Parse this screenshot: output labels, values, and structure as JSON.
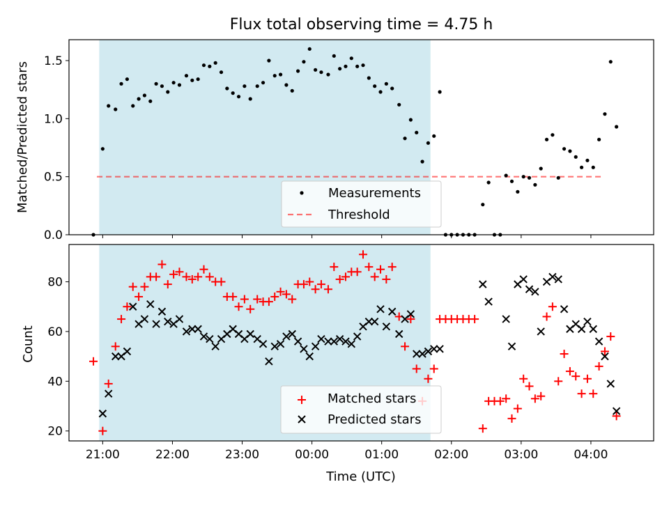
{
  "title": "Flux total observing time = 4.75 h",
  "colors": {
    "shade": "#add8e6",
    "measurement": "#000000",
    "threshold": "#ff0000",
    "matched": "#ff0000",
    "predicted": "#000000"
  },
  "chart_data": [
    {
      "type": "scatter",
      "ylabel": "Matched/Predicted stars",
      "xlim": [
        "20:31",
        "04:54"
      ],
      "ylim": [
        0,
        1.68
      ],
      "yticks": [
        "0.0",
        "0.5",
        "1.0",
        "1.5"
      ],
      "grid": false,
      "legend_position": "lower-center",
      "shaded_span": [
        "20:57",
        "01:42"
      ],
      "threshold": {
        "name": "Threshold",
        "value": 0.5,
        "style": "dashed",
        "x_range": [
          "20:55",
          "04:10"
        ]
      },
      "series": [
        {
          "name": "Measurements",
          "marker": "dot",
          "points": [
            [
              "20:52",
              0.0
            ],
            [
              "21:00",
              0.74
            ],
            [
              "21:05",
              1.11
            ],
            [
              "21:11",
              1.08
            ],
            [
              "21:16",
              1.3
            ],
            [
              "21:21",
              1.34
            ],
            [
              "21:26",
              1.11
            ],
            [
              "21:31",
              1.17
            ],
            [
              "21:36",
              1.2
            ],
            [
              "21:41",
              1.15
            ],
            [
              "21:46",
              1.3
            ],
            [
              "21:51",
              1.28
            ],
            [
              "21:56",
              1.23
            ],
            [
              "22:01",
              1.31
            ],
            [
              "22:06",
              1.29
            ],
            [
              "22:12",
              1.37
            ],
            [
              "22:17",
              1.33
            ],
            [
              "22:22",
              1.34
            ],
            [
              "22:27",
              1.46
            ],
            [
              "22:32",
              1.45
            ],
            [
              "22:37",
              1.48
            ],
            [
              "22:42",
              1.4
            ],
            [
              "22:47",
              1.26
            ],
            [
              "22:52",
              1.22
            ],
            [
              "22:57",
              1.19
            ],
            [
              "23:02",
              1.28
            ],
            [
              "23:07",
              1.17
            ],
            [
              "23:13",
              1.28
            ],
            [
              "23:18",
              1.31
            ],
            [
              "23:23",
              1.5
            ],
            [
              "23:28",
              1.37
            ],
            [
              "23:33",
              1.38
            ],
            [
              "23:38",
              1.29
            ],
            [
              "23:43",
              1.24
            ],
            [
              "23:48",
              1.41
            ],
            [
              "23:53",
              1.49
            ],
            [
              "23:58",
              1.6
            ],
            [
              "00:03",
              1.42
            ],
            [
              "00:08",
              1.4
            ],
            [
              "00:14",
              1.38
            ],
            [
              "00:19",
              1.54
            ],
            [
              "00:24",
              1.43
            ],
            [
              "00:29",
              1.45
            ],
            [
              "00:34",
              1.52
            ],
            [
              "00:39",
              1.45
            ],
            [
              "00:44",
              1.46
            ],
            [
              "00:49",
              1.35
            ],
            [
              "00:54",
              1.28
            ],
            [
              "00:59",
              1.23
            ],
            [
              "01:04",
              1.3
            ],
            [
              "01:09",
              1.26
            ],
            [
              "01:15",
              1.12
            ],
            [
              "01:20",
              0.83
            ],
            [
              "01:25",
              0.99
            ],
            [
              "01:30",
              0.88
            ],
            [
              "01:35",
              0.63
            ],
            [
              "01:40",
              0.79
            ],
            [
              "01:45",
              0.85
            ],
            [
              "01:50",
              1.23
            ],
            [
              "01:55",
              0.0
            ],
            [
              "02:00",
              0.0
            ],
            [
              "02:05",
              0.0
            ],
            [
              "02:10",
              0.0
            ],
            [
              "02:15",
              0.0
            ],
            [
              "02:20",
              0.0
            ],
            [
              "02:27",
              0.26
            ],
            [
              "02:32",
              0.45
            ],
            [
              "02:37",
              0.0
            ],
            [
              "02:42",
              0.0
            ],
            [
              "02:47",
              0.51
            ],
            [
              "02:52",
              0.46
            ],
            [
              "02:57",
              0.37
            ],
            [
              "03:02",
              0.5
            ],
            [
              "03:07",
              0.49
            ],
            [
              "03:12",
              0.43
            ],
            [
              "03:17",
              0.57
            ],
            [
              "03:22",
              0.82
            ],
            [
              "03:27",
              0.86
            ],
            [
              "03:32",
              0.49
            ],
            [
              "03:37",
              0.74
            ],
            [
              "03:42",
              0.72
            ],
            [
              "03:47",
              0.67
            ],
            [
              "03:52",
              0.58
            ],
            [
              "03:57",
              0.64
            ],
            [
              "04:02",
              0.58
            ],
            [
              "04:07",
              0.82
            ],
            [
              "04:12",
              1.04
            ],
            [
              "04:17",
              1.49
            ],
            [
              "04:22",
              0.93
            ]
          ]
        }
      ]
    },
    {
      "type": "scatter",
      "xlabel": "Time (UTC)",
      "ylabel": "Count",
      "xlim": [
        "20:31",
        "04:54"
      ],
      "ylim": [
        16,
        95
      ],
      "xticks": [
        "21:00",
        "22:00",
        "23:00",
        "00:00",
        "01:00",
        "02:00",
        "03:00",
        "04:00"
      ],
      "yticks": [
        "20",
        "40",
        "60",
        "80"
      ],
      "grid": false,
      "legend_position": "lower-center",
      "shaded_span": [
        "20:57",
        "01:42"
      ],
      "series": [
        {
          "name": "Matched stars",
          "marker": "plus",
          "points": [
            [
              "20:52",
              48
            ],
            [
              "21:00",
              20
            ],
            [
              "21:05",
              39
            ],
            [
              "21:11",
              54
            ],
            [
              "21:16",
              65
            ],
            [
              "21:21",
              70
            ],
            [
              "21:26",
              78
            ],
            [
              "21:31",
              74
            ],
            [
              "21:36",
              78
            ],
            [
              "21:41",
              82
            ],
            [
              "21:46",
              82
            ],
            [
              "21:51",
              87
            ],
            [
              "21:56",
              79
            ],
            [
              "22:01",
              83
            ],
            [
              "22:06",
              84
            ],
            [
              "22:12",
              82
            ],
            [
              "22:17",
              81
            ],
            [
              "22:22",
              82
            ],
            [
              "22:27",
              85
            ],
            [
              "22:32",
              82
            ],
            [
              "22:37",
              80
            ],
            [
              "22:42",
              80
            ],
            [
              "22:47",
              74
            ],
            [
              "22:52",
              74
            ],
            [
              "22:57",
              70
            ],
            [
              "23:02",
              73
            ],
            [
              "23:07",
              69
            ],
            [
              "23:13",
              73
            ],
            [
              "23:18",
              72
            ],
            [
              "23:23",
              72
            ],
            [
              "23:28",
              74
            ],
            [
              "23:33",
              76
            ],
            [
              "23:38",
              75
            ],
            [
              "23:43",
              73
            ],
            [
              "23:48",
              79
            ],
            [
              "23:53",
              79
            ],
            [
              "23:58",
              80
            ],
            [
              "00:03",
              77
            ],
            [
              "00:08",
              79
            ],
            [
              "00:14",
              77
            ],
            [
              "00:19",
              86
            ],
            [
              "00:24",
              81
            ],
            [
              "00:29",
              82
            ],
            [
              "00:34",
              84
            ],
            [
              "00:39",
              84
            ],
            [
              "00:44",
              91
            ],
            [
              "00:49",
              86
            ],
            [
              "00:54",
              82
            ],
            [
              "00:59",
              85
            ],
            [
              "01:04",
              81
            ],
            [
              "01:09",
              86
            ],
            [
              "01:15",
              66
            ],
            [
              "01:20",
              54
            ],
            [
              "01:25",
              65
            ],
            [
              "01:30",
              45
            ],
            [
              "01:35",
              32
            ],
            [
              "01:40",
              41
            ],
            [
              "01:45",
              45
            ],
            [
              "01:50",
              65
            ],
            [
              "01:55",
              65
            ],
            [
              "02:00",
              65
            ],
            [
              "02:05",
              65
            ],
            [
              "02:10",
              65
            ],
            [
              "02:15",
              65
            ],
            [
              "02:20",
              65
            ],
            [
              "02:27",
              21
            ],
            [
              "02:32",
              32
            ],
            [
              "02:37",
              32
            ],
            [
              "02:42",
              32
            ],
            [
              "02:47",
              33
            ],
            [
              "02:52",
              25
            ],
            [
              "02:57",
              29
            ],
            [
              "03:02",
              41
            ],
            [
              "03:07",
              38
            ],
            [
              "03:12",
              33
            ],
            [
              "03:17",
              34
            ],
            [
              "03:22",
              66
            ],
            [
              "03:27",
              70
            ],
            [
              "03:32",
              40
            ],
            [
              "03:37",
              51
            ],
            [
              "03:42",
              44
            ],
            [
              "03:47",
              42
            ],
            [
              "03:52",
              35
            ],
            [
              "03:57",
              41
            ],
            [
              "04:02",
              35
            ],
            [
              "04:07",
              46
            ],
            [
              "04:12",
              52
            ],
            [
              "04:17",
              58
            ],
            [
              "04:22",
              26
            ]
          ]
        },
        {
          "name": "Predicted stars",
          "marker": "x",
          "points": [
            [
              "21:00",
              27
            ],
            [
              "21:05",
              35
            ],
            [
              "21:11",
              50
            ],
            [
              "21:16",
              50
            ],
            [
              "21:21",
              52
            ],
            [
              "21:26",
              70
            ],
            [
              "21:31",
              63
            ],
            [
              "21:36",
              65
            ],
            [
              "21:41",
              71
            ],
            [
              "21:46",
              63
            ],
            [
              "21:51",
              68
            ],
            [
              "21:56",
              64
            ],
            [
              "22:01",
              63
            ],
            [
              "22:06",
              65
            ],
            [
              "22:12",
              60
            ],
            [
              "22:17",
              61
            ],
            [
              "22:22",
              61
            ],
            [
              "22:27",
              58
            ],
            [
              "22:32",
              57
            ],
            [
              "22:37",
              54
            ],
            [
              "22:42",
              57
            ],
            [
              "22:47",
              59
            ],
            [
              "22:52",
              61
            ],
            [
              "22:57",
              59
            ],
            [
              "23:02",
              57
            ],
            [
              "23:07",
              59
            ],
            [
              "23:13",
              57
            ],
            [
              "23:18",
              55
            ],
            [
              "23:23",
              48
            ],
            [
              "23:28",
              54
            ],
            [
              "23:33",
              55
            ],
            [
              "23:38",
              58
            ],
            [
              "23:43",
              59
            ],
            [
              "23:48",
              56
            ],
            [
              "23:53",
              53
            ],
            [
              "23:58",
              50
            ],
            [
              "00:03",
              54
            ],
            [
              "00:08",
              57
            ],
            [
              "00:14",
              56
            ],
            [
              "00:19",
              56
            ],
            [
              "00:24",
              57
            ],
            [
              "00:29",
              56
            ],
            [
              "00:34",
              55
            ],
            [
              "00:39",
              58
            ],
            [
              "00:44",
              62
            ],
            [
              "00:49",
              64
            ],
            [
              "00:54",
              64
            ],
            [
              "00:59",
              69
            ],
            [
              "01:04",
              62
            ],
            [
              "01:09",
              68
            ],
            [
              "01:15",
              59
            ],
            [
              "01:20",
              65
            ],
            [
              "01:25",
              67
            ],
            [
              "01:30",
              51
            ],
            [
              "01:35",
              51
            ],
            [
              "01:40",
              52
            ],
            [
              "01:45",
              53
            ],
            [
              "01:50",
              53
            ],
            [
              "02:27",
              79
            ],
            [
              "02:32",
              72
            ],
            [
              "02:47",
              65
            ],
            [
              "02:52",
              54
            ],
            [
              "02:57",
              79
            ],
            [
              "03:02",
              81
            ],
            [
              "03:07",
              77
            ],
            [
              "03:12",
              76
            ],
            [
              "03:17",
              60
            ],
            [
              "03:22",
              80
            ],
            [
              "03:27",
              82
            ],
            [
              "03:32",
              81
            ],
            [
              "03:37",
              69
            ],
            [
              "03:42",
              61
            ],
            [
              "03:47",
              63
            ],
            [
              "03:52",
              61
            ],
            [
              "03:57",
              64
            ],
            [
              "04:02",
              61
            ],
            [
              "04:07",
              56
            ],
            [
              "04:12",
              50
            ],
            [
              "04:17",
              39
            ],
            [
              "04:22",
              28
            ]
          ]
        }
      ]
    }
  ]
}
